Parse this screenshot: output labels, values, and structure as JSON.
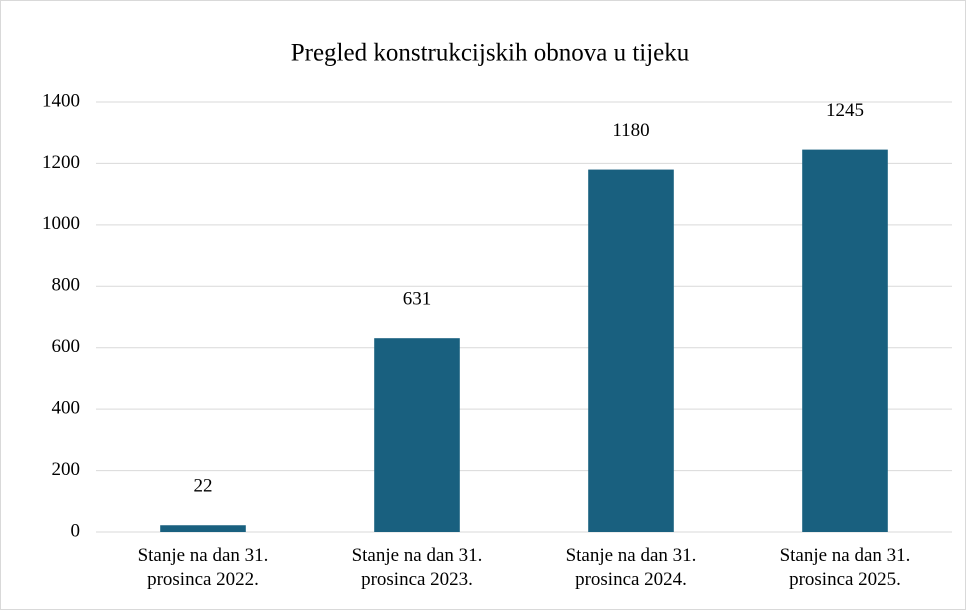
{
  "chart_data": {
    "type": "bar",
    "title": "Pregled konstrukcijskih obnova u tijeku",
    "categories": [
      "Stanje na dan 31. prosinca 2022.",
      "Stanje na dan 31. prosinca 2023.",
      "Stanje na dan 31. prosinca 2024.",
      "Stanje na dan 31. prosinca 2025."
    ],
    "values": [
      22,
      631,
      1180,
      1245
    ],
    "color": "#19607f",
    "ylim": [
      0,
      1400
    ],
    "yticks": [
      0,
      200,
      400,
      600,
      800,
      1000,
      1200,
      1400
    ],
    "grid": true,
    "data_labels": true
  }
}
